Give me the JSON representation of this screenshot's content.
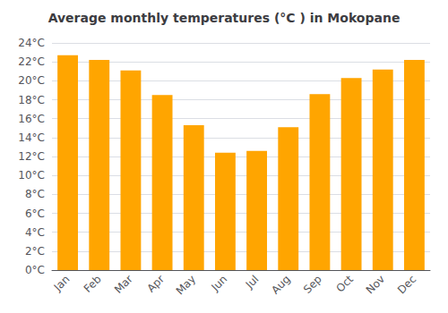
{
  "chart_data": {
    "type": "bar",
    "title": "Average monthly temperatures (°C ) in Mokopane",
    "categories": [
      "Jan",
      "Feb",
      "Mar",
      "Apr",
      "May",
      "Jun",
      "Jul",
      "Aug",
      "Sep",
      "Oct",
      "Nov",
      "Dec"
    ],
    "values": [
      22.7,
      22.2,
      21.1,
      18.5,
      15.3,
      12.4,
      12.6,
      15.1,
      18.6,
      20.3,
      21.2,
      22.2
    ],
    "color": "#FFA500",
    "ylim": [
      0,
      24
    ],
    "yticks": [
      {
        "value": 0,
        "label": "0°C"
      },
      {
        "value": 2,
        "label": "2°C"
      },
      {
        "value": 4,
        "label": "4°C"
      },
      {
        "value": 6,
        "label": "6°C"
      },
      {
        "value": 8,
        "label": "8°C"
      },
      {
        "value": 10,
        "label": "10°C"
      },
      {
        "value": 12,
        "label": "12°C"
      },
      {
        "value": 14,
        "label": "14°C"
      },
      {
        "value": 16,
        "label": "16°C"
      },
      {
        "value": 18,
        "label": "18°C"
      },
      {
        "value": 20,
        "label": "20°C"
      },
      {
        "value": 22,
        "label": "22°C"
      },
      {
        "value": 24,
        "label": "24°C"
      }
    ],
    "grid": true
  }
}
